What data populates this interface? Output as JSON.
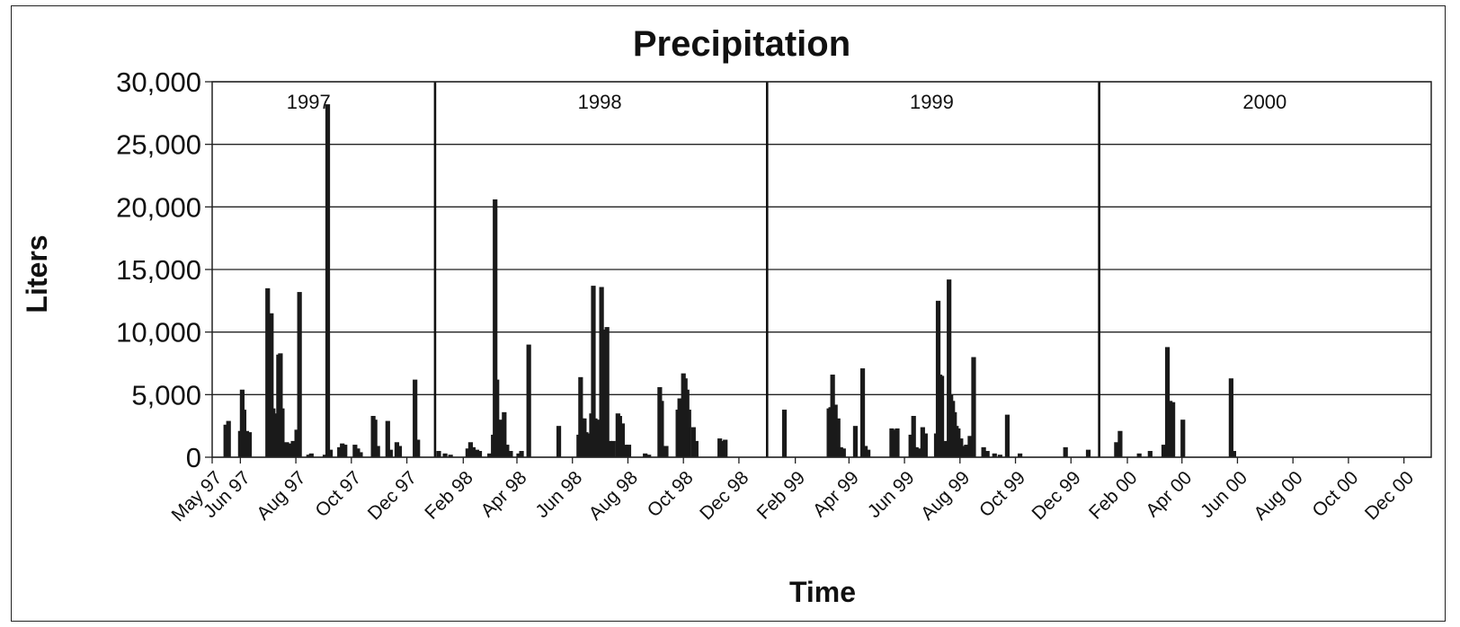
{
  "chart_data": {
    "type": "bar",
    "title": "Precipitation",
    "xlabel": "Time",
    "ylabel": "Liters",
    "ylim": [
      0,
      30000
    ],
    "xlim": [
      "1997-05-01",
      "2000-12-31"
    ],
    "yticks": [
      "0",
      "5,000",
      "10,000",
      "15,000",
      "20,000",
      "25,000",
      "30,000"
    ],
    "xticks": [
      {
        "date": "1997-05-01",
        "label": "May 97"
      },
      {
        "date": "1997-06-01",
        "label": "Jun 97"
      },
      {
        "date": "1997-08-01",
        "label": "Aug 97"
      },
      {
        "date": "1997-10-01",
        "label": "Oct 97"
      },
      {
        "date": "1997-12-01",
        "label": "Dec 97"
      },
      {
        "date": "1998-02-01",
        "label": "Feb 98"
      },
      {
        "date": "1998-04-01",
        "label": "Apr 98"
      },
      {
        "date": "1998-06-01",
        "label": "Jun 98"
      },
      {
        "date": "1998-08-01",
        "label": "Aug 98"
      },
      {
        "date": "1998-10-01",
        "label": "Oct 98"
      },
      {
        "date": "1998-12-01",
        "label": "Dec 98"
      },
      {
        "date": "1999-02-01",
        "label": "Feb 99"
      },
      {
        "date": "1999-04-01",
        "label": "Apr 99"
      },
      {
        "date": "1999-06-01",
        "label": "Jun 99"
      },
      {
        "date": "1999-08-01",
        "label": "Aug 99"
      },
      {
        "date": "1999-10-01",
        "label": "Oct 99"
      },
      {
        "date": "1999-12-01",
        "label": "Dec 99"
      },
      {
        "date": "2000-02-01",
        "label": "Feb 00"
      },
      {
        "date": "2000-04-01",
        "label": "Apr 00"
      },
      {
        "date": "2000-06-01",
        "label": "Jun 00"
      },
      {
        "date": "2000-08-01",
        "label": "Aug 00"
      },
      {
        "date": "2000-10-01",
        "label": "Oct 00"
      },
      {
        "date": "2000-12-01",
        "label": "Dec 00"
      }
    ],
    "year_dividers": [
      "1998-01-01",
      "1999-01-01",
      "2000-01-01"
    ],
    "year_labels": [
      {
        "label": "1997",
        "date": "1997-08-15"
      },
      {
        "label": "1998",
        "date": "1998-07-01"
      },
      {
        "label": "1999",
        "date": "1999-07-01"
      },
      {
        "label": "2000",
        "date": "2000-07-01"
      }
    ],
    "grid": true,
    "series": [
      {
        "color": "#1a1a1a",
        "points": [
          [
            "1997-05-16",
            2600
          ],
          [
            "1997-05-19",
            2900
          ],
          [
            "1997-06-01",
            2100
          ],
          [
            "1997-06-03",
            5400
          ],
          [
            "1997-06-05",
            3800
          ],
          [
            "1997-06-08",
            2100
          ],
          [
            "1997-06-11",
            2000
          ],
          [
            "1997-07-01",
            13500
          ],
          [
            "1997-07-03",
            7000
          ],
          [
            "1997-07-05",
            11500
          ],
          [
            "1997-07-07",
            3900
          ],
          [
            "1997-07-09",
            2600
          ],
          [
            "1997-07-11",
            3500
          ],
          [
            "1997-07-13",
            8200
          ],
          [
            "1997-07-15",
            8300
          ],
          [
            "1997-07-17",
            3900
          ],
          [
            "1997-07-19",
            1100
          ],
          [
            "1997-07-22",
            1200
          ],
          [
            "1997-07-25",
            1100
          ],
          [
            "1997-07-29",
            1300
          ],
          [
            "1997-08-02",
            2200
          ],
          [
            "1997-08-05",
            13200
          ],
          [
            "1997-08-15",
            200
          ],
          [
            "1997-08-18",
            300
          ],
          [
            "1997-09-02",
            200
          ],
          [
            "1997-09-05",
            28200
          ],
          [
            "1997-09-08",
            600
          ],
          [
            "1997-09-18",
            800
          ],
          [
            "1997-09-21",
            1100
          ],
          [
            "1997-09-24",
            1000
          ],
          [
            "1997-10-05",
            1000
          ],
          [
            "1997-10-08",
            700
          ],
          [
            "1997-10-11",
            400
          ],
          [
            "1997-10-25",
            3300
          ],
          [
            "1997-10-27",
            3000
          ],
          [
            "1997-10-30",
            900
          ],
          [
            "1997-11-10",
            2900
          ],
          [
            "1997-11-13",
            600
          ],
          [
            "1997-11-20",
            1200
          ],
          [
            "1997-11-23",
            900
          ],
          [
            "1997-12-10",
            6200
          ],
          [
            "1997-12-13",
            1400
          ],
          [
            "1998-01-05",
            500
          ],
          [
            "1998-01-12",
            300
          ],
          [
            "1998-01-18",
            200
          ],
          [
            "1998-02-06",
            700
          ],
          [
            "1998-02-09",
            1200
          ],
          [
            "1998-02-12",
            800
          ],
          [
            "1998-02-16",
            600
          ],
          [
            "1998-02-19",
            500
          ],
          [
            "1998-03-02",
            300
          ],
          [
            "1998-03-06",
            1800
          ],
          [
            "1998-03-08",
            20600
          ],
          [
            "1998-03-10",
            6200
          ],
          [
            "1998-03-12",
            2300
          ],
          [
            "1998-03-14",
            3000
          ],
          [
            "1998-03-16",
            2500
          ],
          [
            "1998-03-18",
            3600
          ],
          [
            "1998-03-21",
            1000
          ],
          [
            "1998-03-25",
            500
          ],
          [
            "1998-04-03",
            300
          ],
          [
            "1998-04-06",
            500
          ],
          [
            "1998-04-14",
            9000
          ],
          [
            "1998-05-17",
            2500
          ],
          [
            "1998-06-08",
            1800
          ],
          [
            "1998-06-10",
            6400
          ],
          [
            "1998-06-12",
            3100
          ],
          [
            "1998-06-14",
            3100
          ],
          [
            "1998-06-16",
            2000
          ],
          [
            "1998-06-20",
            1900
          ],
          [
            "1998-06-22",
            3500
          ],
          [
            "1998-06-24",
            13700
          ],
          [
            "1998-06-26",
            3100
          ],
          [
            "1998-06-28",
            3000
          ],
          [
            "1998-07-01",
            2600
          ],
          [
            "1998-07-03",
            13600
          ],
          [
            "1998-07-05",
            6300
          ],
          [
            "1998-07-07",
            10200
          ],
          [
            "1998-07-09",
            10400
          ],
          [
            "1998-07-12",
            1300
          ],
          [
            "1998-07-16",
            1300
          ],
          [
            "1998-07-21",
            3500
          ],
          [
            "1998-07-23",
            3300
          ],
          [
            "1998-07-26",
            2700
          ],
          [
            "1998-07-29",
            1000
          ],
          [
            "1998-08-02",
            1000
          ],
          [
            "1998-08-20",
            300
          ],
          [
            "1998-08-24",
            200
          ],
          [
            "1998-09-05",
            5600
          ],
          [
            "1998-09-07",
            4500
          ],
          [
            "1998-09-12",
            900
          ],
          [
            "1998-09-25",
            3800
          ],
          [
            "1998-09-27",
            4700
          ],
          [
            "1998-09-29",
            4600
          ],
          [
            "1998-10-01",
            6700
          ],
          [
            "1998-10-03",
            6300
          ],
          [
            "1998-10-05",
            5400
          ],
          [
            "1998-10-07",
            3800
          ],
          [
            "1998-10-12",
            2400
          ],
          [
            "1998-10-15",
            1300
          ],
          [
            "1998-11-10",
            1500
          ],
          [
            "1998-11-13",
            1300
          ],
          [
            "1998-11-16",
            1400
          ],
          [
            "1999-01-20",
            3800
          ],
          [
            "1999-03-10",
            3900
          ],
          [
            "1999-03-12",
            4000
          ],
          [
            "1999-03-14",
            6600
          ],
          [
            "1999-03-17",
            4200
          ],
          [
            "1999-03-20",
            3100
          ],
          [
            "1999-03-23",
            800
          ],
          [
            "1999-03-26",
            700
          ],
          [
            "1999-04-08",
            2500
          ],
          [
            "1999-04-16",
            7100
          ],
          [
            "1999-04-19",
            900
          ],
          [
            "1999-04-22",
            600
          ],
          [
            "1999-05-18",
            2300
          ],
          [
            "1999-05-21",
            2200
          ],
          [
            "1999-05-24",
            2300
          ],
          [
            "1999-06-08",
            1800
          ],
          [
            "1999-06-11",
            3300
          ],
          [
            "1999-06-14",
            800
          ],
          [
            "1999-06-17",
            700
          ],
          [
            "1999-06-21",
            2400
          ],
          [
            "1999-06-24",
            1900
          ],
          [
            "1999-07-06",
            1900
          ],
          [
            "1999-07-08",
            12500
          ],
          [
            "1999-07-10",
            6600
          ],
          [
            "1999-07-12",
            6500
          ],
          [
            "1999-07-14",
            1100
          ],
          [
            "1999-07-17",
            1300
          ],
          [
            "1999-07-20",
            14200
          ],
          [
            "1999-07-22",
            5000
          ],
          [
            "1999-07-24",
            4500
          ],
          [
            "1999-07-26",
            3600
          ],
          [
            "1999-07-28",
            2500
          ],
          [
            "1999-07-30",
            2300
          ],
          [
            "1999-08-02",
            1500
          ],
          [
            "1999-08-05",
            900
          ],
          [
            "1999-08-08",
            1000
          ],
          [
            "1999-08-12",
            1700
          ],
          [
            "1999-08-16",
            8000
          ],
          [
            "1999-08-27",
            800
          ],
          [
            "1999-08-31",
            500
          ],
          [
            "1999-09-08",
            300
          ],
          [
            "1999-09-14",
            200
          ],
          [
            "1999-09-22",
            3400
          ],
          [
            "1999-10-06",
            300
          ],
          [
            "1999-11-25",
            800
          ],
          [
            "1999-12-20",
            600
          ],
          [
            "2000-01-20",
            1200
          ],
          [
            "2000-01-24",
            2100
          ],
          [
            "2000-02-14",
            300
          ],
          [
            "2000-02-26",
            500
          ],
          [
            "2000-03-12",
            1000
          ],
          [
            "2000-03-16",
            8800
          ],
          [
            "2000-03-19",
            4500
          ],
          [
            "2000-03-22",
            4400
          ],
          [
            "2000-04-02",
            3000
          ],
          [
            "2000-05-25",
            6300
          ],
          [
            "2000-05-28",
            500
          ]
        ]
      }
    ]
  }
}
